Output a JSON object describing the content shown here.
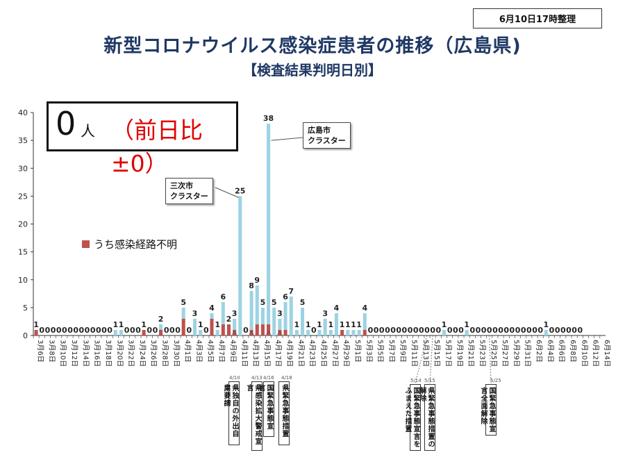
{
  "header": {
    "stamp": "6月10日17時整理",
    "title": "新型コロナウイルス感染症患者の推移（広島県)",
    "subtitle": "【検査結果判明日別】"
  },
  "summary": {
    "count": "0",
    "unit": "人",
    "diff": "（前日比±0）"
  },
  "legend": {
    "label": "うち感染経路不明",
    "color": "#c0504d"
  },
  "callouts": {
    "miyoshi": [
      "三次市",
      "クラスター"
    ],
    "hiroshima": [
      "広島市",
      "クラスター"
    ]
  },
  "notes": [
    {
      "date": "4/10",
      "text": "県独自の外出自粛要請"
    },
    {
      "date": "4/13",
      "text": "県感染拡大警戒宣言"
    },
    {
      "date": "4/16",
      "text": "国緊急事態宣言"
    },
    {
      "date": "4/18",
      "text": "県緊急事態措置"
    },
    {
      "date": "5/14",
      "text": "国緊急事態宣言をふまえた措置"
    },
    {
      "date": "5/15",
      "text": "県緊急事態措置の解除"
    },
    {
      "date": "5/25",
      "text": "国緊急事態宣言全面解除"
    }
  ],
  "colors": {
    "bar": "#9dd3e2",
    "unknown": "#c0504d",
    "axis": "#333333"
  },
  "chart_data": {
    "type": "bar",
    "title": "",
    "xlabel": "",
    "ylabel": "",
    "ylim": [
      0,
      40
    ],
    "yticks": [
      0,
      5,
      10,
      15,
      20,
      25,
      30,
      35,
      40
    ],
    "stacked": true,
    "categories": [
      "3月6日",
      "3月7日",
      "3月8日",
      "3月9日",
      "3月10日",
      "3月11日",
      "3月12日",
      "3月13日",
      "3月14日",
      "3月15日",
      "3月16日",
      "3月17日",
      "3月18日",
      "3月19日",
      "3月20日",
      "3月21日",
      "3月22日",
      "3月23日",
      "3月24日",
      "3月25日",
      "3月26日",
      "3月27日",
      "3月28日",
      "3月29日",
      "3月30日",
      "3月31日",
      "4月1日",
      "4月2日",
      "4月3日",
      "4月4日",
      "4月5日",
      "4月6日",
      "4月7日",
      "4月8日",
      "4月9日",
      "4月10日",
      "4月11日",
      "4月12日",
      "4月13日",
      "4月14日",
      "4月15日",
      "4月16日",
      "4月17日",
      "4月18日",
      "4月19日",
      "4月20日",
      "4月21日",
      "4月22日",
      "4月23日",
      "4月24日",
      "4月25日",
      "4月26日",
      "4月27日",
      "4月28日",
      "4月29日",
      "4月30日",
      "5月1日",
      "5月2日",
      "5月3日",
      "5月4日",
      "5月5日",
      "5月6日",
      "5月7日",
      "5月8日",
      "5月9日",
      "5月10日",
      "5月11日",
      "5月12日",
      "5月13日",
      "5月14日",
      "5月15日",
      "5月16日",
      "5月17日",
      "5月18日",
      "5月19日",
      "5月20日",
      "5月21日",
      "5月22日",
      "5月23日",
      "5月24日",
      "5月25日",
      "5月26日",
      "5月27日",
      "5月28日",
      "5月29日",
      "5月30日",
      "5月31日",
      "6月1日",
      "6月2日",
      "6月3日",
      "6月4日",
      "6月5日",
      "6月6日",
      "6月7日",
      "6月8日",
      "6月9日",
      "6月10日",
      "6月11日",
      "6月12日",
      "6月13日",
      "6月14日"
    ],
    "xticklabels": [
      "3月6日",
      "3月8日",
      "3月10日",
      "3月12日",
      "3月14日",
      "3月16日",
      "3月18日",
      "3月20日",
      "3月22日",
      "3月24日",
      "3月26日",
      "3月28日",
      "3月30日",
      "4月1日",
      "4月3日",
      "4月5日",
      "4月7日",
      "4月9日",
      "4月11日",
      "4月13日",
      "4月15日",
      "4月17日",
      "4月19日",
      "4月21日",
      "4月23日",
      "4月25日",
      "4月27日",
      "4月29日",
      "5月1日",
      "5月3日",
      "5月5日",
      "5月7日",
      "5月9日",
      "5月11日",
      "5月13日",
      "5月15日",
      "5月17日",
      "5月19日",
      "5月21日",
      "5月23日",
      "5月25日",
      "5月27日",
      "5月29日",
      "5月31日",
      "6月2日",
      "6月4日",
      "6月6日",
      "6月8日",
      "6月10日",
      "6月12日",
      "6月14日"
    ],
    "totals": [
      1,
      0,
      0,
      0,
      0,
      0,
      0,
      0,
      0,
      0,
      0,
      0,
      0,
      0,
      1,
      1,
      0,
      0,
      0,
      1,
      0,
      0,
      2,
      0,
      0,
      0,
      5,
      0,
      3,
      1,
      0,
      4,
      1,
      6,
      2,
      3,
      25,
      0,
      8,
      9,
      5,
      38,
      5,
      3,
      6,
      7,
      1,
      5,
      1,
      0,
      1,
      3,
      1,
      4,
      1,
      1,
      1,
      1,
      4,
      0,
      0,
      0,
      0,
      0,
      0,
      0,
      0,
      0,
      0,
      0,
      0,
      0,
      1,
      0,
      0,
      0,
      1,
      0,
      0,
      0,
      0,
      0,
      0,
      0,
      0,
      0,
      0,
      0,
      0,
      0,
      1,
      0,
      0,
      0,
      0,
      0,
      0,
      null,
      null,
      null,
      null
    ],
    "series": [
      {
        "name": "うち感染経路不明",
        "values": [
          1,
          0,
          0,
          0,
          0,
          0,
          0,
          0,
          0,
          0,
          0,
          0,
          0,
          0,
          0,
          0,
          0,
          0,
          0,
          1,
          0,
          0,
          1,
          0,
          0,
          0,
          3,
          0,
          0,
          0,
          0,
          3,
          0,
          2,
          2,
          1,
          0,
          0,
          1,
          2,
          2,
          2,
          0,
          1,
          1,
          0,
          0,
          0,
          0,
          0,
          0,
          0,
          0,
          0,
          1,
          0,
          0,
          0,
          1,
          0,
          0,
          0,
          0,
          0,
          0,
          0,
          0,
          0,
          0,
          0,
          0,
          0,
          0,
          0,
          0,
          0,
          0,
          0,
          0,
          0,
          0,
          0,
          0,
          0,
          0,
          0,
          0,
          0,
          0,
          0,
          0,
          0,
          0,
          0,
          0,
          0,
          0,
          null,
          null,
          null,
          null
        ]
      }
    ]
  }
}
